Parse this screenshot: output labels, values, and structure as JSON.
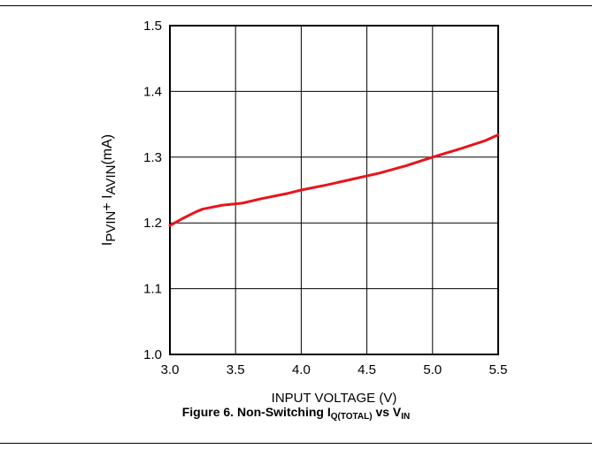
{
  "chart_data": {
    "type": "line",
    "xlabel": "INPUT VOLTAGE (V)",
    "ylabel": {
      "parts": [
        {
          "text": "I",
          "sub": false
        },
        {
          "text": "PVIN",
          "sub": true
        },
        {
          "text": "+ I",
          "sub": false
        },
        {
          "text": "AVIN",
          "sub": true
        },
        {
          "text": "(mA)",
          "sub": false
        }
      ]
    },
    "xlim": [
      3.0,
      5.5
    ],
    "ylim": [
      1.0,
      1.5
    ],
    "xticks": [
      "3.0",
      "3.5",
      "4.0",
      "4.5",
      "5.0",
      "5.5"
    ],
    "yticks": [
      "1.0",
      "1.1",
      "1.2",
      "1.3",
      "1.4",
      "1.5"
    ],
    "grid": true,
    "series": [
      {
        "color": "#e8141c",
        "x": [
          3.0,
          3.1,
          3.2,
          3.25,
          3.3,
          3.4,
          3.55,
          3.7,
          3.9,
          4.0,
          4.2,
          4.4,
          4.6,
          4.8,
          5.0,
          5.2,
          5.4,
          5.5
        ],
        "y": [
          1.196,
          1.207,
          1.217,
          1.221,
          1.223,
          1.227,
          1.23,
          1.237,
          1.245,
          1.25,
          1.258,
          1.267,
          1.276,
          1.287,
          1.3,
          1.312,
          1.325,
          1.334
        ]
      }
    ]
  },
  "caption": {
    "prefix": "Figure 6. Non-Switching I",
    "sub1": "Q(TOTAL)",
    "mid": " vs V",
    "sub2": "IN"
  }
}
